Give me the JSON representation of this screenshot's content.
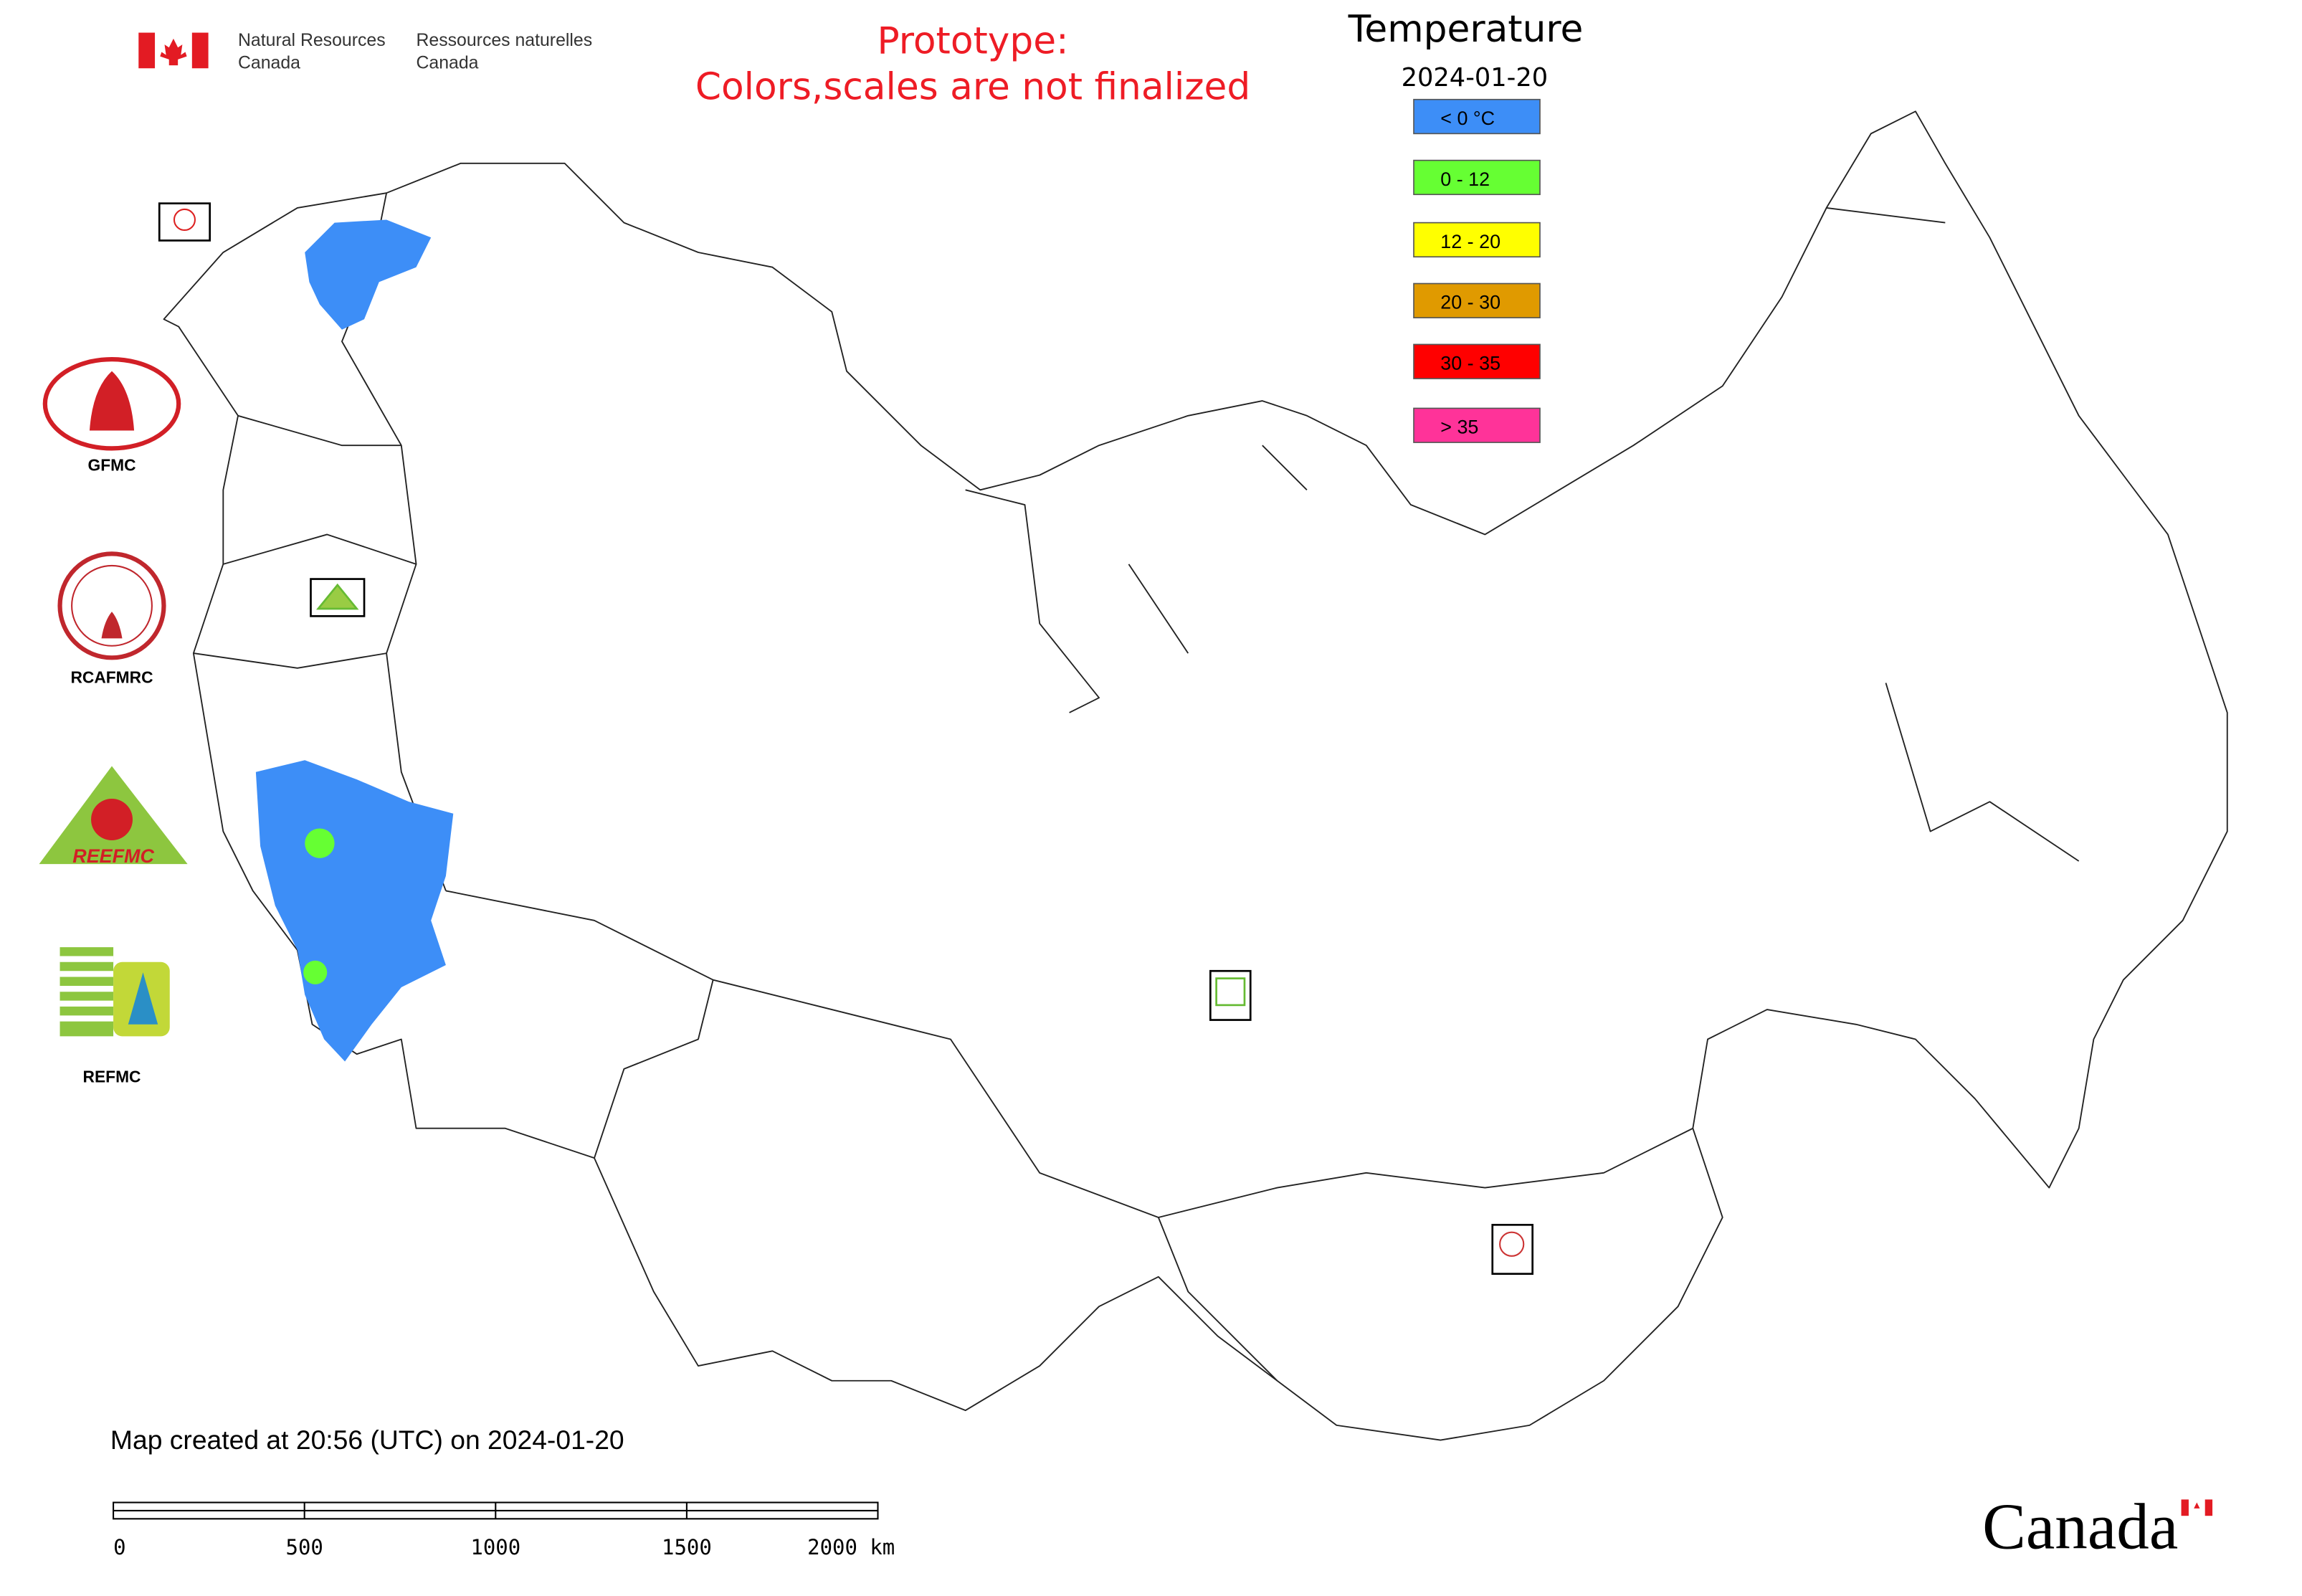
{
  "header": {
    "department_en": [
      "Natural Resources",
      "Canada"
    ],
    "department_fr": [
      "Ressources naturelles",
      "Canada"
    ],
    "notice": [
      "Prototype:",
      "Colors,scales are not finalized"
    ]
  },
  "legend": {
    "title": "Temperature",
    "date": "2024-01-20",
    "items": [
      {
        "label": "< 0 °C",
        "color": "#3d8ef7"
      },
      {
        "label": "0 - 12",
        "color": "#66ff33"
      },
      {
        "label": "12 - 20",
        "color": "#ffff00"
      },
      {
        "label": "20 - 30",
        "color": "#e09a00"
      },
      {
        "label": "30 - 35",
        "color": "#ff0000"
      },
      {
        "label": "> 35",
        "color": "#ff3399"
      }
    ]
  },
  "logos": [
    "GFMC",
    "RCAFMRC",
    "REEFMC",
    "REFMC"
  ],
  "footer": {
    "created": "Map created at 20:56 (UTC) on 2024-01-20",
    "scale_labels": [
      "0",
      "500",
      "1000",
      "1500",
      "2000 km"
    ],
    "wordmark": "Canada"
  }
}
